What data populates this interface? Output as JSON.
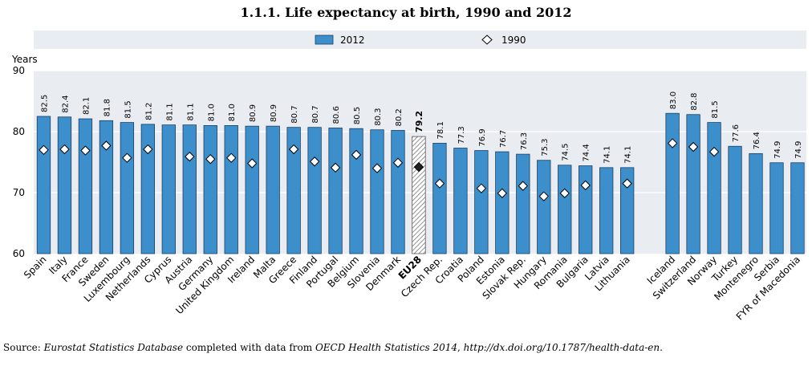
{
  "chart_data": {
    "type": "bar",
    "title": "1.1.1.  Life expectancy at birth, 1990 and 2012",
    "ylabel": "Years",
    "xlabel": "",
    "ylim": [
      60,
      90
    ],
    "yticks": [
      60,
      70,
      80,
      90
    ],
    "grid": true,
    "legend_position": "top",
    "legend": [
      {
        "name": "2012",
        "marker": "bar"
      },
      {
        "name": "1990",
        "marker": "diamond"
      }
    ],
    "colors": {
      "bar": "#3d8fcc",
      "bar_border": "#1a3f66",
      "highlight_bar": "#ffffff",
      "highlight_hatch": "#777777",
      "diamond_fill": "#ffffff",
      "diamond_highlight": "#222222",
      "plot_bg": "#e9ecf0",
      "grid": "#ffffff"
    },
    "groups": [
      {
        "categories": [
          "Spain",
          "Italy",
          "France",
          "Sweden",
          "Luxembourg",
          "Netherlands",
          "Cyprus",
          "Austria",
          "Germany",
          "United Kingdom",
          "Ireland",
          "Malta",
          "Greece",
          "Finland",
          "Portugal",
          "Belgium",
          "Slovenia",
          "Denmark",
          "EU28",
          "Czech Rep.",
          "Croatia",
          "Poland",
          "Estonia",
          "Slovak Rep.",
          "Hungary",
          "Romania",
          "Bulgaria",
          "Latvia",
          "Lithuania"
        ],
        "series": [
          {
            "name": "2012",
            "values": [
              82.5,
              82.4,
              82.1,
              81.8,
              81.5,
              81.2,
              81.1,
              81.1,
              81.0,
              81.0,
              80.9,
              80.9,
              80.7,
              80.7,
              80.6,
              80.5,
              80.3,
              80.2,
              79.2,
              78.1,
              77.3,
              76.9,
              76.7,
              76.3,
              75.3,
              74.5,
              74.4,
              74.1,
              74.1
            ]
          },
          {
            "name": "1990",
            "values": [
              77.0,
              77.1,
              76.9,
              77.7,
              75.7,
              77.1,
              null,
              75.9,
              75.5,
              75.7,
              74.8,
              null,
              77.1,
              75.1,
              74.1,
              76.2,
              74.0,
              74.9,
              74.2,
              71.5,
              null,
              70.7,
              69.9,
              71.1,
              69.4,
              69.9,
              71.2,
              null,
              71.5
            ]
          }
        ],
        "data_labels": [
          "82.5",
          "82.4",
          "82.1",
          "81.8",
          "81.5",
          "81.2",
          "81.1",
          "81.1",
          "81.0",
          "81.0",
          "80.9",
          "80.9",
          "80.7",
          "80.7",
          "80.6",
          "80.5",
          "80.3",
          "80.2",
          "79.2",
          "78.1",
          "77.3",
          "76.9",
          "76.7",
          "76.3",
          "75.3",
          "74.5",
          "74.4",
          "74.1",
          "74.1"
        ],
        "highlight": "EU28"
      },
      {
        "categories": [
          "Iceland",
          "Switzerland",
          "Norway",
          "Turkey",
          "Montenegro",
          "Serbia",
          "FYR of Macedonia"
        ],
        "series": [
          {
            "name": "2012",
            "values": [
              83.0,
              82.8,
              81.5,
              77.6,
              76.4,
              74.9,
              74.9
            ]
          },
          {
            "name": "1990",
            "values": [
              78.1,
              77.5,
              76.7,
              null,
              null,
              null,
              null
            ]
          }
        ],
        "data_labels": [
          "83.0",
          "82.8",
          "81.5",
          "77.6",
          "76.4",
          "74.9",
          "74.9"
        ]
      }
    ],
    "source": {
      "prefix": "Source:",
      "italic1": "Eurostat Statistics Database",
      "middle": "completed with data from",
      "italic2": "OECD Health Statistics 2014",
      "url": "http://dx.doi.org/10.1787/health-data-en",
      "end": "."
    }
  }
}
